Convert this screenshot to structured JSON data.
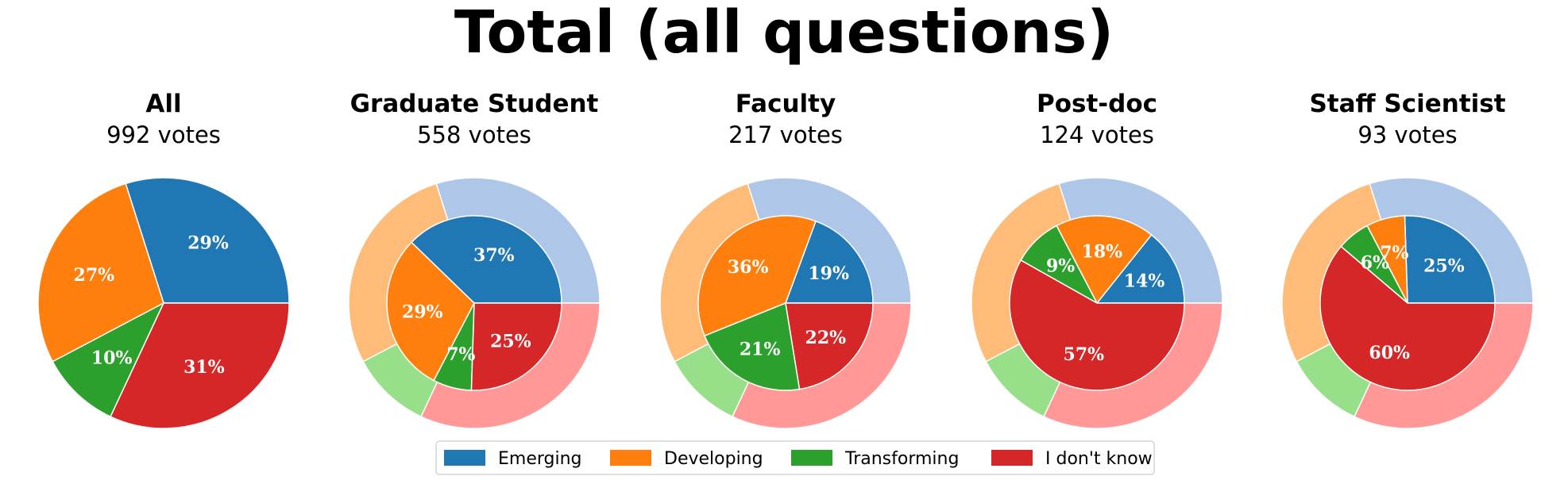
{
  "figure": {
    "title": "Total (all questions)"
  },
  "legend": {
    "items": [
      {
        "label": "Emerging",
        "color": "#1f77b4"
      },
      {
        "label": "Developing",
        "color": "#ff7f0e"
      },
      {
        "label": "Transforming",
        "color": "#2ca02c"
      },
      {
        "label": "I don't know",
        "color": "#d62728"
      }
    ]
  },
  "chart_data": [
    {
      "type": "pie",
      "title": "All",
      "subtitle": "992 votes",
      "categories": [
        "Emerging",
        "Developing",
        "Transforming",
        "I don't know"
      ],
      "values": [
        29,
        27,
        10,
        31
      ],
      "labels": [
        "29%",
        "27%",
        "10%",
        "31%"
      ],
      "outer_ring": false
    },
    {
      "type": "pie",
      "title": "Graduate Student",
      "subtitle": "558 votes",
      "categories": [
        "Emerging",
        "Developing",
        "Transforming",
        "I don't know"
      ],
      "values": [
        37,
        29,
        7,
        25
      ],
      "labels": [
        "37%",
        "29%",
        "7%",
        "25%"
      ],
      "outer_ring": true,
      "outer_values": [
        29,
        27,
        10,
        31
      ]
    },
    {
      "type": "pie",
      "title": "Faculty",
      "subtitle": "217 votes",
      "categories": [
        "Emerging",
        "Developing",
        "Transforming",
        "I don't know"
      ],
      "values": [
        19,
        36,
        21,
        22
      ],
      "labels": [
        "19%",
        "36%",
        "21%",
        "22%"
      ],
      "outer_ring": true,
      "outer_values": [
        29,
        27,
        10,
        31
      ]
    },
    {
      "type": "pie",
      "title": "Post-doc",
      "subtitle": "124 votes",
      "categories": [
        "Emerging",
        "Developing",
        "Transforming",
        "I don't know"
      ],
      "values": [
        14,
        18,
        9,
        57
      ],
      "labels": [
        "14%",
        "18%",
        "9%",
        "57%"
      ],
      "outer_ring": true,
      "outer_values": [
        29,
        27,
        10,
        31
      ]
    },
    {
      "type": "pie",
      "title": "Staff Scientist",
      "subtitle": "93 votes",
      "categories": [
        "Emerging",
        "Developing",
        "Transforming",
        "I don't know"
      ],
      "values": [
        25,
        7,
        6,
        60
      ],
      "labels": [
        "25%",
        "7%",
        "6%",
        "60%"
      ],
      "outer_ring": true,
      "outer_values": [
        29,
        27,
        10,
        31
      ]
    }
  ],
  "colors": {
    "inner": [
      "#1f77b4",
      "#ff7f0e",
      "#2ca02c",
      "#d62728"
    ],
    "outer": [
      "#aec7e8",
      "#ffbb78",
      "#98df8a",
      "#ff9896"
    ]
  }
}
